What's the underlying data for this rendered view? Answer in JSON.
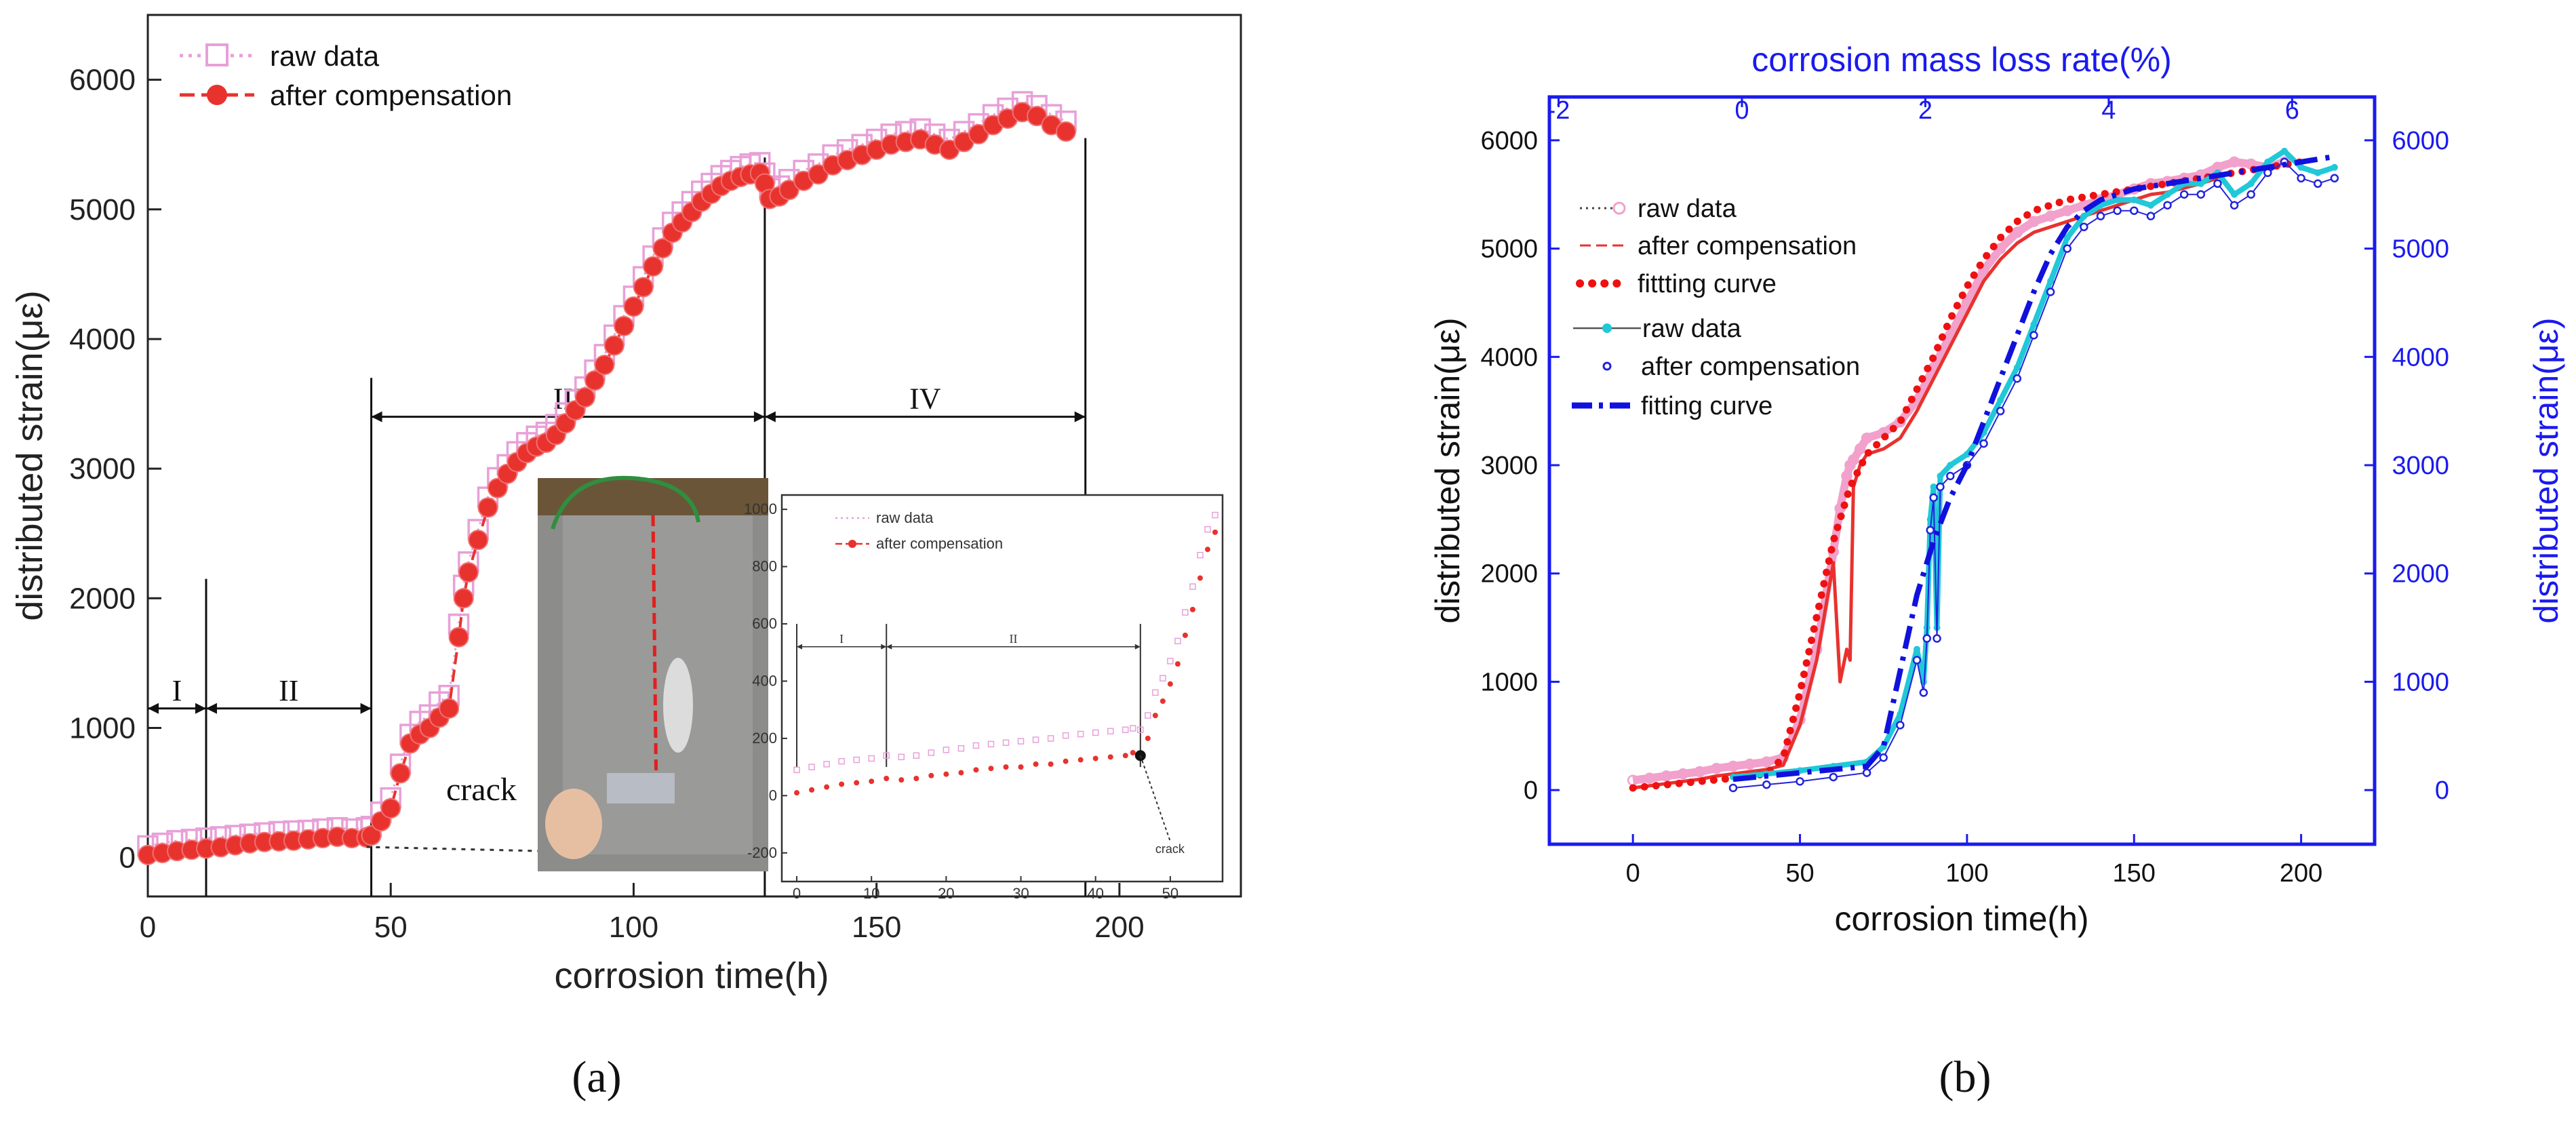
{
  "panel_labels": {
    "a": "(a)",
    "b": "(b)"
  },
  "colors": {
    "raw_a": "#e8a0d8",
    "comp_a": "#e8322e",
    "raw_b_red": "#f2a0cc",
    "comp_b_red": "#e8322e",
    "fit_red": "#ee1111",
    "raw_b_blue": "#20c8d8",
    "comp_b_blue": "#2222dd",
    "fit_blue": "#1111dd",
    "blue_axis": "#1a1aee"
  },
  "chart_data": [
    {
      "id": "a-main",
      "type": "scatter",
      "title": "",
      "xlabel": "corrosion time(h)",
      "ylabel": "distributed strain(με)",
      "xlim": [
        0,
        225
      ],
      "ylim": [
        -300,
        6500
      ],
      "xticks": [
        0,
        50,
        100,
        150,
        200
      ],
      "yticks": [
        0,
        1000,
        2000,
        3000,
        4000,
        5000,
        6000
      ],
      "legend": [
        "raw data",
        "after compensation"
      ],
      "legend_position": "top-left",
      "stages": [
        {
          "label": "I",
          "x0": 0,
          "x1": 12,
          "y": 1150
        },
        {
          "label": "II",
          "x0": 12,
          "x1": 46,
          "y": 1150
        },
        {
          "label": "III",
          "x0": 46,
          "x1": 127,
          "y": 3400
        },
        {
          "label": "IV",
          "x0": 127,
          "x1": 193,
          "y": 3400
        }
      ],
      "stage_boundaries": [
        {
          "x": 12,
          "y_top": 2150
        },
        {
          "x": 46,
          "y_top": 3700
        },
        {
          "x": 127,
          "y_top": 5400
        },
        {
          "x": 193,
          "y_top": 5550
        }
      ],
      "annotation": "crack",
      "series": [
        {
          "name": "after compensation",
          "x": [
            0,
            3,
            6,
            9,
            12,
            15,
            18,
            21,
            24,
            27,
            30,
            33,
            36,
            39,
            42,
            45,
            46,
            48,
            50,
            52,
            54,
            56,
            58,
            60,
            62,
            64,
            65,
            66,
            68,
            70,
            72,
            74,
            76,
            78,
            80,
            82,
            84,
            86,
            88,
            90,
            92,
            94,
            96,
            98,
            100,
            102,
            104,
            106,
            108,
            110,
            112,
            114,
            116,
            118,
            120,
            122,
            124,
            126,
            127,
            128,
            130,
            132,
            135,
            138,
            141,
            144,
            147,
            150,
            153,
            156,
            159,
            162,
            165,
            168,
            171,
            174,
            177,
            180,
            183,
            186,
            189
          ],
          "y": [
            20,
            35,
            50,
            60,
            70,
            80,
            95,
            110,
            120,
            125,
            130,
            140,
            150,
            160,
            150,
            155,
            170,
            280,
            380,
            650,
            880,
            950,
            1000,
            1080,
            1150,
            1700,
            2000,
            2200,
            2450,
            2700,
            2850,
            2960,
            3050,
            3120,
            3170,
            3200,
            3260,
            3350,
            3450,
            3550,
            3680,
            3800,
            3950,
            4100,
            4250,
            4400,
            4560,
            4700,
            4820,
            4900,
            4980,
            5060,
            5120,
            5180,
            5220,
            5250,
            5270,
            5280,
            5200,
            5080,
            5100,
            5150,
            5220,
            5270,
            5340,
            5380,
            5420,
            5460,
            5500,
            5520,
            5540,
            5500,
            5460,
            5520,
            5580,
            5650,
            5700,
            5750,
            5720,
            5650,
            5600
          ]
        },
        {
          "name": "raw data",
          "x": [
            0,
            3,
            6,
            9,
            12,
            15,
            18,
            21,
            24,
            27,
            30,
            33,
            36,
            39,
            42,
            45,
            46,
            48,
            50,
            52,
            54,
            56,
            58,
            60,
            62,
            64,
            65,
            66,
            68,
            70,
            72,
            74,
            76,
            78,
            80,
            82,
            84,
            86,
            88,
            90,
            92,
            94,
            96,
            98,
            100,
            102,
            104,
            106,
            108,
            110,
            112,
            114,
            116,
            118,
            120,
            122,
            124,
            126,
            127,
            128,
            130,
            132,
            135,
            138,
            141,
            144,
            147,
            150,
            153,
            156,
            159,
            162,
            165,
            168,
            171,
            174,
            177,
            180,
            183,
            186,
            189
          ],
          "y": [
            90,
            110,
            130,
            140,
            150,
            160,
            170,
            180,
            190,
            200,
            205,
            210,
            220,
            230,
            220,
            230,
            240,
            350,
            460,
            720,
            950,
            1050,
            1100,
            1200,
            1250,
            1800,
            2100,
            2280,
            2530,
            2780,
            2930,
            3030,
            3130,
            3200,
            3250,
            3280,
            3340,
            3430,
            3530,
            3630,
            3760,
            3880,
            4030,
            4180,
            4330,
            4480,
            4640,
            4780,
            4900,
            4980,
            5060,
            5140,
            5200,
            5260,
            5300,
            5330,
            5350,
            5360,
            5280,
            5160,
            5180,
            5230,
            5300,
            5350,
            5420,
            5460,
            5500,
            5540,
            5580,
            5600,
            5620,
            5580,
            5540,
            5600,
            5660,
            5730,
            5780,
            5830,
            5800,
            5730,
            5680
          ]
        }
      ]
    },
    {
      "id": "a-inset",
      "type": "scatter",
      "xlim": [
        -2,
        57
      ],
      "ylim": [
        -300,
        1050
      ],
      "xticks": [
        0,
        10,
        20,
        30,
        40,
        50
      ],
      "yticks": [
        -200,
        0,
        200,
        400,
        600,
        800,
        1000
      ],
      "legend": [
        "raw data",
        "after compensation"
      ],
      "stages": [
        {
          "label": "I",
          "x0": 0,
          "x1": 12,
          "y": 520
        },
        {
          "label": "II",
          "x0": 12,
          "x1": 46,
          "y": 520
        }
      ],
      "annotation": "crack",
      "series": [
        {
          "name": "after compensation",
          "x": [
            0,
            2,
            4,
            6,
            8,
            10,
            12,
            14,
            16,
            18,
            20,
            22,
            24,
            26,
            28,
            30,
            32,
            34,
            36,
            38,
            40,
            42,
            44,
            45,
            46,
            47,
            48,
            49,
            50,
            51,
            52,
            53,
            54,
            55,
            56
          ],
          "y": [
            10,
            20,
            30,
            40,
            45,
            50,
            60,
            55,
            60,
            70,
            75,
            80,
            90,
            95,
            100,
            100,
            110,
            110,
            120,
            125,
            130,
            135,
            140,
            150,
            140,
            200,
            280,
            330,
            390,
            460,
            560,
            650,
            760,
            860,
            920
          ]
        },
        {
          "name": "raw data",
          "x": [
            0,
            2,
            4,
            6,
            8,
            10,
            12,
            14,
            16,
            18,
            20,
            22,
            24,
            26,
            28,
            30,
            32,
            34,
            36,
            38,
            40,
            42,
            44,
            45,
            46,
            47,
            48,
            49,
            50,
            51,
            52,
            53,
            54,
            55,
            56
          ],
          "y": [
            90,
            100,
            110,
            120,
            125,
            130,
            140,
            135,
            140,
            150,
            160,
            165,
            175,
            180,
            185,
            190,
            195,
            200,
            210,
            215,
            220,
            225,
            230,
            235,
            230,
            280,
            360,
            410,
            470,
            540,
            640,
            730,
            840,
            930,
            980
          ]
        }
      ]
    },
    {
      "id": "b",
      "type": "line",
      "xlabel": "corrosion time(h)",
      "ylabel": "distributed strain(με)",
      "y2label": "distributed strain(με)",
      "x2label": "corrosion mass loss rate(%)",
      "xlim": [
        -25,
        222
      ],
      "ylim": [
        -500,
        6400
      ],
      "x2lim": [
        -2.1,
        6.9
      ],
      "xticks": [
        0,
        50,
        100,
        150,
        200
      ],
      "x2ticks": [
        -2,
        0,
        2,
        4,
        6
      ],
      "yticks": [
        0,
        1000,
        2000,
        3000,
        4000,
        5000,
        6000
      ],
      "legend": [
        "raw data",
        "after compensation",
        "fittting curve",
        "raw data",
        "after compensation",
        "fitting curve"
      ],
      "legend_position": "top-left",
      "series": [
        {
          "name": "raw data (red)",
          "x": [
            0,
            5,
            10,
            15,
            20,
            25,
            30,
            35,
            40,
            45,
            50,
            55,
            60,
            62,
            64,
            65,
            66,
            68,
            70,
            75,
            80,
            85,
            90,
            95,
            100,
            105,
            110,
            115,
            120,
            125,
            130,
            135,
            140,
            145,
            150,
            155,
            160,
            165,
            170,
            175,
            180,
            185,
            190,
            195
          ],
          "y": [
            90,
            110,
            130,
            150,
            170,
            200,
            220,
            240,
            260,
            300,
            650,
            1300,
            2200,
            2600,
            2900,
            3000,
            3050,
            3150,
            3250,
            3300,
            3400,
            3600,
            3900,
            4200,
            4500,
            4800,
            5000,
            5150,
            5250,
            5300,
            5350,
            5400,
            5450,
            5500,
            5550,
            5600,
            5620,
            5650,
            5680,
            5750,
            5800,
            5780,
            5750,
            5800
          ]
        },
        {
          "name": "after compensation (red)",
          "x": [
            0,
            5,
            10,
            15,
            20,
            25,
            30,
            35,
            40,
            45,
            50,
            55,
            60,
            62,
            64,
            65,
            66,
            68,
            70,
            75,
            80,
            85,
            90,
            95,
            100,
            105,
            110,
            115,
            120,
            125,
            130,
            135,
            140,
            145,
            150,
            155,
            160,
            165,
            170,
            175
          ],
          "y": [
            20,
            40,
            60,
            80,
            100,
            130,
            150,
            170,
            190,
            230,
            600,
            1200,
            2100,
            1000,
            1300,
            1200,
            2800,
            3000,
            3100,
            3150,
            3250,
            3500,
            3800,
            4100,
            4400,
            4700,
            4900,
            5050,
            5150,
            5200,
            5250,
            5300,
            5350,
            5400,
            5450,
            5500,
            5520,
            5560,
            5600,
            5650
          ]
        },
        {
          "name": "fittting curve (red)",
          "x": [
            0,
            10,
            20,
            30,
            40,
            45,
            50,
            55,
            60,
            65,
            70,
            75,
            80,
            85,
            90,
            95,
            100,
            105,
            110,
            115,
            120,
            130,
            140,
            150,
            160,
            170,
            180,
            190,
            200
          ],
          "y": [
            20,
            50,
            80,
            110,
            150,
            300,
            900,
            1600,
            2300,
            2800,
            3100,
            3250,
            3400,
            3700,
            4000,
            4350,
            4650,
            4900,
            5100,
            5250,
            5350,
            5450,
            5500,
            5550,
            5600,
            5650,
            5700,
            5750,
            5800
          ]
        },
        {
          "name": "raw data (blue)",
          "x": [
            30,
            40,
            50,
            60,
            70,
            75,
            80,
            85,
            87,
            88,
            89,
            90,
            91,
            92,
            95,
            100,
            105,
            110,
            115,
            120,
            125,
            130,
            135,
            140,
            145,
            150,
            155,
            160,
            165,
            170,
            175,
            180,
            185,
            190,
            195,
            200,
            205,
            210
          ],
          "y": [
            120,
            150,
            180,
            220,
            260,
            400,
            700,
            1300,
            1000,
            1500,
            2500,
            2800,
            1500,
            2900,
            3000,
            3100,
            3300,
            3600,
            3900,
            4300,
            4700,
            5100,
            5300,
            5400,
            5450,
            5450,
            5400,
            5500,
            5600,
            5600,
            5700,
            5500,
            5600,
            5800,
            5900,
            5750,
            5700,
            5750
          ]
        },
        {
          "name": "after compensation (blue)",
          "x": [
            30,
            40,
            50,
            60,
            70,
            75,
            80,
            85,
            87,
            88,
            89,
            90,
            91,
            92,
            95,
            100,
            105,
            110,
            115,
            120,
            125,
            130,
            135,
            140,
            145,
            150,
            155,
            160,
            165,
            170,
            175,
            180,
            185,
            190,
            195,
            200,
            205,
            210
          ],
          "y": [
            20,
            50,
            80,
            120,
            160,
            300,
            600,
            1200,
            900,
            1400,
            2400,
            2700,
            1400,
            2800,
            2900,
            3000,
            3200,
            3500,
            3800,
            4200,
            4600,
            5000,
            5200,
            5300,
            5350,
            5350,
            5300,
            5400,
            5500,
            5500,
            5600,
            5400,
            5500,
            5700,
            5800,
            5650,
            5600,
            5650
          ]
        },
        {
          "name": "fitting curve (blue)",
          "x": [
            30,
            50,
            70,
            75,
            80,
            85,
            90,
            95,
            100,
            105,
            110,
            115,
            120,
            125,
            130,
            135,
            140,
            150,
            160,
            170,
            180,
            190,
            200,
            210
          ],
          "y": [
            100,
            160,
            220,
            400,
            1100,
            1800,
            2300,
            2700,
            3000,
            3400,
            3800,
            4200,
            4600,
            4950,
            5200,
            5350,
            5450,
            5550,
            5600,
            5650,
            5700,
            5750,
            5800,
            5850
          ]
        }
      ]
    }
  ]
}
